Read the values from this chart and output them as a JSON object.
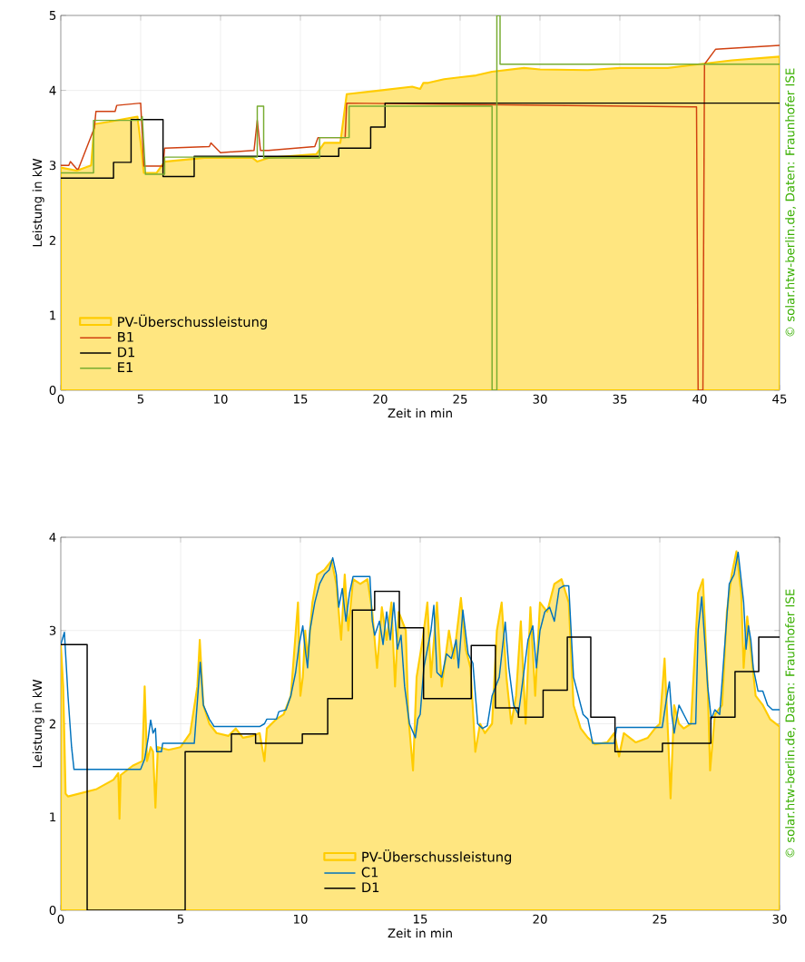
{
  "chart_data": [
    {
      "type": "line",
      "xlabel": "Zeit in min",
      "ylabel": "Leistung in kW",
      "xlim": [
        0,
        45
      ],
      "ylim": [
        0,
        5
      ],
      "xticks": [
        0,
        5,
        10,
        15,
        20,
        25,
        30,
        35,
        40,
        45
      ],
      "yticks": [
        0,
        1,
        2,
        3,
        4,
        5
      ],
      "grid": true,
      "legend": "bottom left",
      "annotations": [
        "© solar.htw-berlin.de, Daten: Fraunhofer ISE"
      ],
      "series": [
        {
          "name": "PV-Überschussleistung",
          "type": "area",
          "color": "#ffcc00",
          "x": [
            0,
            1,
            1.9,
            2.1,
            3,
            4,
            4.8,
            5.0,
            5.2,
            6,
            6.5,
            9,
            12,
            12.3,
            13,
            16,
            16.5,
            17.5,
            17.9,
            20,
            22,
            22.5,
            22.7,
            23,
            24,
            26,
            27,
            29,
            30,
            33,
            35,
            38,
            40,
            42,
            45
          ],
          "values": [
            2.97,
            2.93,
            3.0,
            3.55,
            3.58,
            3.62,
            3.65,
            3.3,
            2.9,
            2.9,
            3.05,
            3.1,
            3.1,
            3.05,
            3.1,
            3.15,
            3.3,
            3.3,
            3.95,
            4.0,
            4.05,
            4.02,
            4.1,
            4.1,
            4.15,
            4.2,
            4.25,
            4.3,
            4.28,
            4.27,
            4.3,
            4.3,
            4.35,
            4.4,
            4.45
          ]
        },
        {
          "name": "B1",
          "color": "#d04010",
          "x": [
            0,
            0.5,
            0.6,
            1,
            1.1,
            2.1,
            2.2,
            3.4,
            3.5,
            5.0,
            5.2,
            6.4,
            6.5,
            9.3,
            9.4,
            10,
            12.1,
            12.3,
            12.5,
            13,
            15.9,
            16.1,
            17.8,
            17.9,
            39.8,
            39.9,
            40.2,
            40.3,
            41,
            45
          ],
          "values": [
            3.0,
            3.0,
            3.05,
            2.95,
            2.95,
            3.5,
            3.72,
            3.72,
            3.8,
            3.83,
            2.99,
            2.99,
            3.23,
            3.25,
            3.3,
            3.17,
            3.2,
            3.6,
            3.2,
            3.2,
            3.25,
            3.37,
            3.37,
            3.83,
            3.78,
            0,
            0,
            4.35,
            4.55,
            4.6
          ]
        },
        {
          "name": "D1",
          "color": "#000000",
          "x": [
            0,
            3.3,
            3.3,
            4.4,
            4.4,
            6.4,
            6.4,
            8.35,
            8.35,
            17.4,
            17.4,
            19.4,
            19.4,
            20.3,
            20.3,
            45
          ],
          "values": [
            2.83,
            2.83,
            3.04,
            3.04,
            3.61,
            3.61,
            2.85,
            2.85,
            3.12,
            3.12,
            3.23,
            3.23,
            3.51,
            3.51,
            3.83,
            3.83
          ]
        },
        {
          "name": "E1",
          "color": "#77ac30",
          "x": [
            0,
            2.05,
            2.05,
            5.0,
            5.1,
            5.3,
            6.5,
            6.5,
            12.3,
            12.3,
            12.7,
            12.7,
            16.2,
            16.2,
            18.05,
            18.05,
            27.0,
            27.0,
            27.3,
            27.3,
            27.5,
            27.5,
            45
          ],
          "values": [
            2.9,
            2.9,
            3.6,
            3.6,
            3.65,
            2.88,
            2.88,
            3.11,
            3.11,
            3.79,
            3.79,
            3.1,
            3.1,
            3.37,
            3.37,
            3.79,
            3.79,
            0,
            0,
            5,
            5,
            4.35,
            4.35
          ]
        }
      ]
    },
    {
      "type": "line",
      "xlabel": "Zeit in min",
      "ylabel": "Leistung in kW",
      "xlim": [
        0,
        30
      ],
      "ylim": [
        0,
        4
      ],
      "xticks": [
        0,
        5,
        10,
        15,
        20,
        25,
        30
      ],
      "yticks": [
        0,
        1,
        2,
        3,
        4
      ],
      "grid": true,
      "legend": "bottom",
      "annotations": [
        "© solar.htw-berlin.de, Daten: Fraunhofer ISE"
      ],
      "series": [
        {
          "name": "PV-Überschussleistung",
          "type": "area",
          "color": "#ffcc00",
          "x": [
            0,
            0.1,
            0.2,
            0.3,
            1.5,
            2.2,
            2.4,
            2.45,
            2.5,
            3.0,
            3.4,
            3.5,
            3.6,
            3.75,
            3.85,
            3.95,
            4.05,
            4.5,
            5.0,
            5.4,
            5.7,
            5.8,
            5.95,
            6.2,
            6.5,
            7.0,
            7.3,
            7.6,
            8.0,
            8.3,
            8.5,
            8.6,
            9.0,
            9.3,
            9.6,
            9.9,
            10.0,
            10.1,
            10.2,
            10.3,
            10.5,
            10.7,
            11.0,
            11.3,
            11.5,
            11.7,
            11.85,
            12.0,
            12.2,
            12.5,
            12.8,
            13.0,
            13.2,
            13.4,
            13.6,
            13.8,
            13.95,
            14.1,
            14.4,
            14.5,
            14.7,
            14.85,
            15.1,
            15.3,
            15.45,
            15.7,
            15.9,
            16.2,
            16.4,
            16.7,
            16.9,
            17.1,
            17.3,
            17.5,
            17.7,
            18.0,
            18.2,
            18.4,
            18.6,
            18.8,
            19.0,
            19.2,
            19.4,
            19.6,
            19.8,
            20.0,
            20.3,
            20.6,
            20.9,
            21.2,
            21.4,
            21.7,
            22.0,
            22.3,
            22.8,
            23.1,
            23.3,
            23.5,
            24.0,
            24.5,
            24.8,
            25.0,
            25.2,
            25.35,
            25.45,
            25.6,
            25.8,
            26.0,
            26.3,
            26.6,
            26.8,
            27.0,
            27.1,
            27.3,
            27.6,
            27.8,
            28.0,
            28.2,
            28.4,
            28.5,
            28.65,
            28.8,
            29.0,
            29.3,
            29.6,
            30
          ],
          "values": [
            2.85,
            2.4,
            1.25,
            1.22,
            1.3,
            1.4,
            1.47,
            0.98,
            1.45,
            1.55,
            1.6,
            2.4,
            1.6,
            1.75,
            1.7,
            1.1,
            1.75,
            1.72,
            1.75,
            1.9,
            2.4,
            2.9,
            2.2,
            2.0,
            1.9,
            1.87,
            1.95,
            1.85,
            1.87,
            1.9,
            1.6,
            1.95,
            2.05,
            2.1,
            2.3,
            3.3,
            2.3,
            2.5,
            3.0,
            2.7,
            3.3,
            3.6,
            3.65,
            3.75,
            3.5,
            2.9,
            3.6,
            3.0,
            3.55,
            3.5,
            3.55,
            3.2,
            2.6,
            3.25,
            2.9,
            3.3,
            2.4,
            3.2,
            3.0,
            2.1,
            1.5,
            2.5,
            2.9,
            3.3,
            2.5,
            3.3,
            2.4,
            3.0,
            2.7,
            3.35,
            2.8,
            2.6,
            1.7,
            2.0,
            1.9,
            2.0,
            3.0,
            3.3,
            2.5,
            2.0,
            2.3,
            3.1,
            2.0,
            3.25,
            2.3,
            3.3,
            3.2,
            3.5,
            3.55,
            3.3,
            2.2,
            1.95,
            1.85,
            1.78,
            1.8,
            1.9,
            1.65,
            1.9,
            1.8,
            1.85,
            1.95,
            2.0,
            2.7,
            1.85,
            1.2,
            2.2,
            2.0,
            1.95,
            2.0,
            3.4,
            3.55,
            2.4,
            1.5,
            2.1,
            2.2,
            3.2,
            3.6,
            3.85,
            3.4,
            2.6,
            3.15,
            2.8,
            2.3,
            2.2,
            2.05,
            1.97
          ]
        },
        {
          "name": "C1",
          "color": "#0072bd",
          "x": [
            0,
            0.15,
            0.3,
            0.45,
            0.55,
            3.33,
            3.5,
            3.65,
            3.75,
            3.85,
            3.95,
            4.0,
            4.2,
            4.25,
            5.57,
            5.82,
            5.95,
            6.2,
            6.4,
            8.3,
            8.5,
            8.6,
            9.0,
            9.1,
            9.4,
            9.6,
            9.8,
            9.95,
            10.1,
            10.2,
            10.3,
            10.4,
            10.6,
            10.8,
            11.0,
            11.2,
            11.35,
            11.5,
            11.6,
            11.75,
            11.9,
            12.05,
            12.2,
            12.9,
            13.0,
            13.1,
            13.3,
            13.45,
            13.6,
            13.75,
            13.9,
            14.05,
            14.2,
            14.35,
            14.55,
            14.8,
            14.9,
            15.0,
            15.15,
            15.3,
            15.45,
            15.57,
            15.7,
            15.9,
            16.1,
            16.3,
            16.5,
            16.6,
            16.78,
            17.0,
            17.2,
            17.4,
            17.6,
            17.8,
            18.0,
            18.3,
            18.55,
            18.7,
            18.9,
            19.1,
            19.3,
            19.5,
            19.7,
            19.85,
            20.0,
            20.2,
            20.4,
            20.6,
            20.8,
            21.0,
            21.2,
            21.4,
            21.6,
            21.8,
            22.0,
            22.2,
            23.1,
            23.2,
            25.1,
            25.3,
            25.4,
            25.5,
            25.6,
            25.8,
            26.0,
            26.2,
            26.5,
            26.6,
            26.75,
            26.9,
            27.0,
            27.15,
            27.3,
            27.5,
            27.7,
            27.9,
            28.1,
            28.27,
            28.5,
            28.6,
            28.7,
            28.8,
            28.9,
            29.1,
            29.3,
            29.5,
            29.7,
            30
          ],
          "values": [
            2.85,
            2.98,
            2.3,
            1.75,
            1.51,
            1.51,
            1.62,
            1.85,
            2.04,
            1.9,
            1.95,
            1.7,
            1.7,
            1.79,
            1.79,
            2.66,
            2.2,
            2.05,
            1.97,
            1.97,
            2.0,
            2.05,
            2.05,
            2.13,
            2.15,
            2.3,
            2.55,
            2.85,
            3.05,
            2.8,
            2.6,
            3.0,
            3.3,
            3.5,
            3.6,
            3.65,
            3.78,
            3.6,
            3.25,
            3.45,
            3.1,
            3.4,
            3.58,
            3.58,
            3.1,
            2.95,
            3.1,
            2.85,
            3.2,
            2.9,
            3.3,
            2.8,
            2.95,
            2.4,
            2.0,
            1.85,
            2.05,
            2.1,
            2.6,
            2.8,
            3.0,
            3.27,
            2.55,
            2.5,
            2.75,
            2.7,
            2.9,
            2.6,
            3.22,
            2.75,
            2.65,
            2.0,
            1.95,
            1.98,
            2.3,
            2.5,
            3.09,
            2.6,
            2.2,
            2.1,
            2.5,
            2.9,
            3.05,
            2.6,
            3.0,
            3.2,
            3.25,
            3.1,
            3.45,
            3.48,
            3.48,
            2.5,
            2.3,
            2.1,
            2.05,
            1.79,
            1.79,
            1.96,
            1.96,
            2.3,
            2.45,
            2.1,
            1.9,
            2.2,
            2.1,
            2.0,
            2.0,
            3.0,
            3.36,
            2.8,
            2.4,
            2.05,
            2.15,
            2.1,
            2.8,
            3.5,
            3.6,
            3.84,
            3.3,
            2.8,
            3.05,
            2.9,
            2.6,
            2.35,
            2.35,
            2.2,
            2.15,
            2.15
          ]
        },
        {
          "name": "D1",
          "color": "#000000",
          "x": [
            0,
            1.1,
            1.1,
            5.19,
            5.19,
            7.12,
            7.12,
            8.13,
            8.13,
            10.08,
            10.08,
            11.14,
            11.14,
            12.17,
            12.17,
            13.1,
            13.1,
            14.13,
            14.13,
            15.14,
            15.14,
            17.13,
            17.13,
            18.14,
            18.14,
            19.1,
            19.1,
            20.13,
            20.13,
            21.14,
            21.14,
            22.12,
            22.12,
            23.13,
            23.13,
            25.11,
            25.11,
            27.13,
            27.13,
            28.14,
            28.14,
            29.13,
            29.13,
            30
          ],
          "values": [
            2.85,
            2.85,
            0,
            0,
            1.7,
            1.7,
            1.89,
            1.89,
            1.79,
            1.79,
            1.89,
            1.89,
            2.27,
            2.27,
            3.22,
            3.22,
            3.42,
            3.42,
            3.03,
            3.03,
            2.27,
            2.27,
            2.84,
            2.84,
            2.17,
            2.17,
            2.07,
            2.07,
            2.36,
            2.36,
            2.93,
            2.93,
            2.07,
            2.07,
            1.7,
            1.7,
            1.79,
            1.79,
            2.07,
            2.07,
            2.56,
            2.56,
            2.93,
            2.93
          ]
        }
      ]
    }
  ]
}
